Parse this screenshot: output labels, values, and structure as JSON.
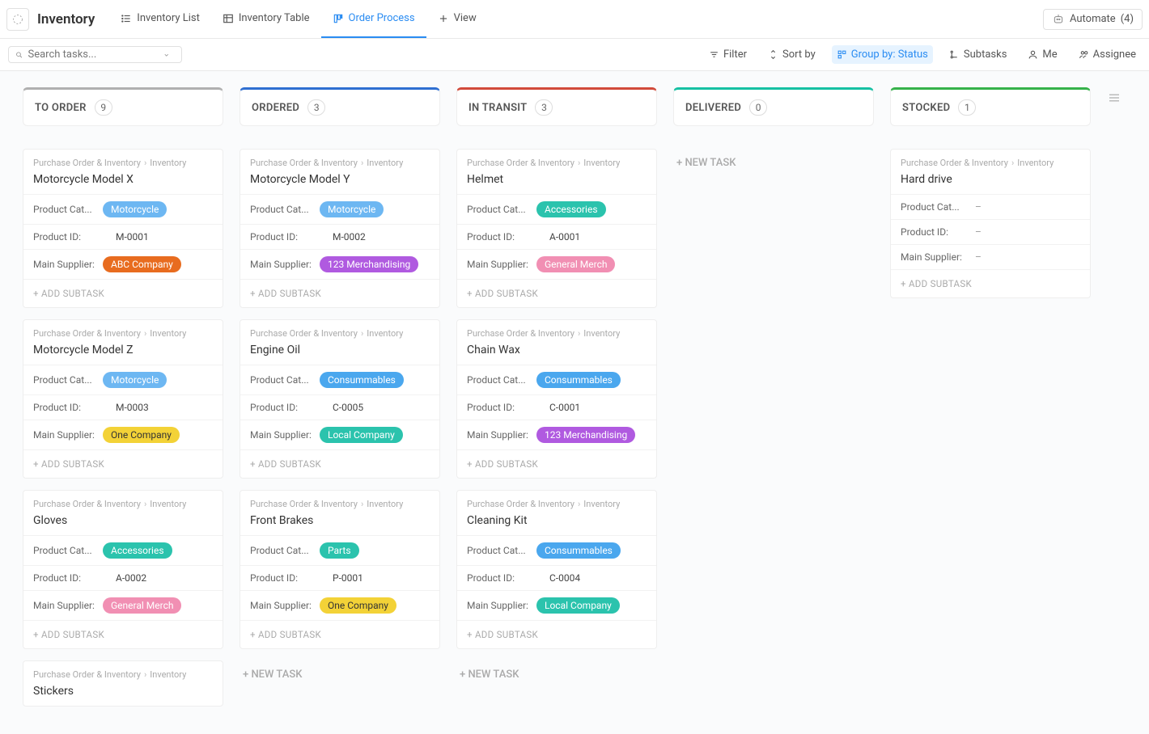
{
  "header": {
    "title": "Inventory",
    "tabs": [
      {
        "label": "Inventory List",
        "icon": "list"
      },
      {
        "label": "Inventory Table",
        "icon": "table"
      },
      {
        "label": "Order Process",
        "icon": "board",
        "active": true
      },
      {
        "label": "View",
        "icon": "plus"
      }
    ],
    "automate": {
      "label": "Automate",
      "count": "(4)"
    }
  },
  "toolbar": {
    "search_placeholder": "Search tasks...",
    "filter": "Filter",
    "sort": "Sort by",
    "group": "Group by: Status",
    "subtasks": "Subtasks",
    "me": "Me",
    "assignee": "Assignee"
  },
  "labels": {
    "breadcrumb_root": "Purchase Order & Inventory",
    "breadcrumb_leaf": "Inventory",
    "cat": "Product Cat...",
    "cat_full": "Product Cat...",
    "pid": "Product ID:",
    "supplier": "Main Supplier:",
    "add_subtask": "+ ADD SUBTASK",
    "new_task": "+  NEW TASK"
  },
  "tag_colors": {
    "Motorcycle": "#6db7f2",
    "Accessories": "#2bc3ad",
    "Consummables": "#4aa7ee",
    "Parts": "#2bc3ad",
    "ABC Company": "#e86c1f",
    "123 Merchandising": "#b05ae0",
    "One Company": "#f3d237",
    "Local Company": "#2bc3ad",
    "General Merch": "#f18fb3"
  },
  "columns": [
    {
      "title": "TO ORDER",
      "count": "9",
      "color": "#b0b0b0",
      "cards": [
        {
          "name": "Motorcycle Model X",
          "cat": "Motorcycle",
          "pid": "M-0001",
          "sup": "ABC Company"
        },
        {
          "name": "Motorcycle Model Z",
          "cat": "Motorcycle",
          "pid": "M-0003",
          "sup": "One Company"
        },
        {
          "name": "Gloves",
          "cat": "Accessories",
          "pid": "A-0002",
          "sup": "General Merch"
        },
        {
          "name": "Stickers",
          "partial": true
        }
      ]
    },
    {
      "title": "ORDERED",
      "count": "3",
      "color": "#2f6fd1",
      "cards": [
        {
          "name": "Motorcycle Model Y",
          "cat": "Motorcycle",
          "pid": "M-0002",
          "sup": "123 Merchandising"
        },
        {
          "name": "Engine Oil",
          "cat": "Consummables",
          "pid": "C-0005",
          "sup": "Local Company"
        },
        {
          "name": "Front Brakes",
          "cat": "Parts",
          "pid": "P-0001",
          "sup": "One Company"
        }
      ],
      "show_new_task": true
    },
    {
      "title": "IN TRANSIT",
      "count": "3",
      "color": "#d14a3a",
      "cards": [
        {
          "name": "Helmet",
          "cat": "Accessories",
          "pid": "A-0001",
          "sup": "General Merch"
        },
        {
          "name": "Chain Wax",
          "cat": "Consummables",
          "pid": "C-0001",
          "sup": "123 Merchandising"
        },
        {
          "name": "Cleaning Kit",
          "cat": "Consummables",
          "pid": "C-0004",
          "sup": "Local Company"
        }
      ],
      "show_new_task": true
    },
    {
      "title": "DELIVERED",
      "count": "0",
      "color": "#16c0a3",
      "cards": [],
      "show_new_task": true
    },
    {
      "title": "STOCKED",
      "count": "1",
      "color": "#36b24a",
      "cards": [
        {
          "name": "Hard drive",
          "empty": true
        }
      ]
    }
  ]
}
